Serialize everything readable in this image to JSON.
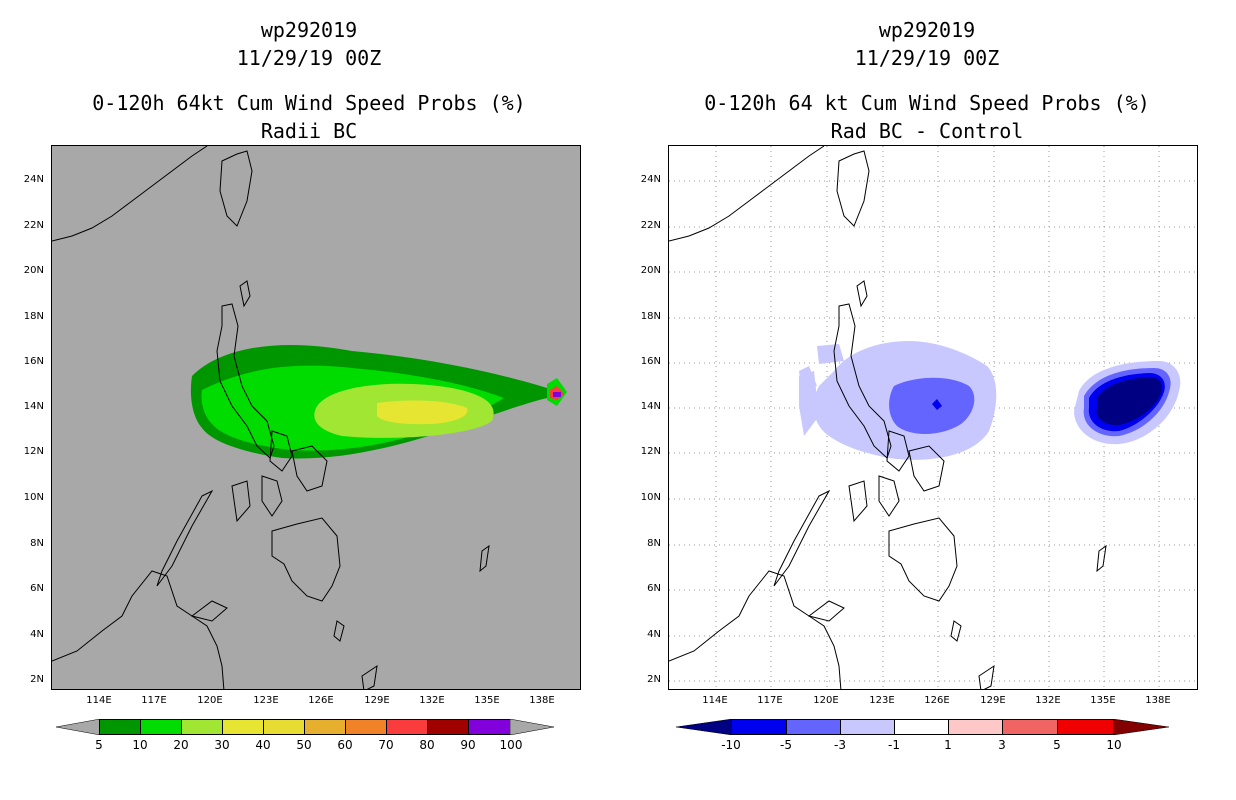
{
  "left_panel": {
    "title_storm": "wp292019",
    "title_date": "11/29/19 00Z",
    "title_main": "0-120h 64kt Cum Wind Speed Probs (%)",
    "title_sub": "Radii BC",
    "background": "#a8a8a8",
    "colorbar": {
      "colors": [
        "#009600",
        "#00dc00",
        "#a0e632",
        "#e6e632",
        "#e6dc32",
        "#e6af2d",
        "#f08228",
        "#fa3c3c",
        "#a00000",
        "#8200dc"
      ],
      "labels": [
        "5",
        "10",
        "20",
        "30",
        "40",
        "50",
        "60",
        "70",
        "80",
        "90",
        "100"
      ],
      "extend_color": "#a8a8a8"
    },
    "legend_values": {
      "5": "#009600",
      "10": "#00dc00",
      "20": "#a0e632",
      "30": "#e6e632"
    }
  },
  "right_panel": {
    "title_storm": "wp292019",
    "title_date": "11/29/19 00Z",
    "title_main": "0-120h 64 kt Cum Wind Speed Probs (%)",
    "title_sub": "Rad BC - Control",
    "background": "#ffffff",
    "colorbar": {
      "colors": [
        "#0000f0",
        "#6464ff",
        "#c8c8ff",
        "#ffffff",
        "#ffc8c8",
        "#f06464",
        "#f00000"
      ],
      "labels": [
        "-10",
        "-5",
        "-3",
        "-1",
        "1",
        "3",
        "5",
        "10"
      ],
      "extend_low": "#000082",
      "extend_high": "#820000"
    }
  },
  "axes": {
    "y_labels": [
      "24N",
      "22N",
      "20N",
      "18N",
      "16N",
      "14N",
      "12N",
      "10N",
      "8N",
      "6N",
      "4N",
      "2N"
    ],
    "x_labels": [
      "114E",
      "117E",
      "120E",
      "123E",
      "126E",
      "129E",
      "132E",
      "135E",
      "138E"
    ],
    "lon_range": [
      111,
      139.5
    ],
    "lat_range": [
      1.5,
      25.5
    ],
    "grid": "dotted"
  }
}
